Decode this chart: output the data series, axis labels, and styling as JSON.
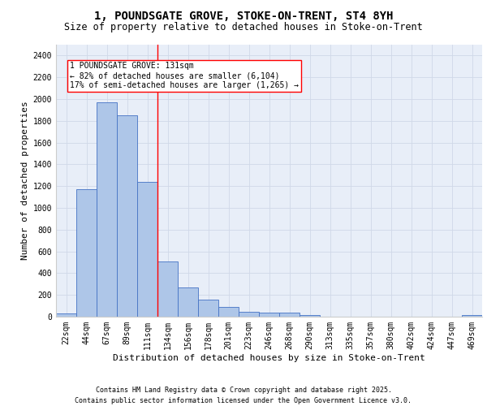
{
  "title_line1": "1, POUNDSGATE GROVE, STOKE-ON-TRENT, ST4 8YH",
  "title_line2": "Size of property relative to detached houses in Stoke-on-Trent",
  "xlabel": "Distribution of detached houses by size in Stoke-on-Trent",
  "ylabel": "Number of detached properties",
  "categories": [
    "22sqm",
    "44sqm",
    "67sqm",
    "89sqm",
    "111sqm",
    "134sqm",
    "156sqm",
    "178sqm",
    "201sqm",
    "223sqm",
    "246sqm",
    "268sqm",
    "290sqm",
    "313sqm",
    "335sqm",
    "357sqm",
    "380sqm",
    "402sqm",
    "424sqm",
    "447sqm",
    "469sqm"
  ],
  "values": [
    30,
    1170,
    1970,
    1850,
    1240,
    510,
    270,
    155,
    90,
    48,
    38,
    38,
    18,
    0,
    0,
    0,
    0,
    0,
    0,
    0,
    18
  ],
  "bar_color": "#aec6e8",
  "bar_edge_color": "#4472c4",
  "vline_x": 4.5,
  "vline_color": "red",
  "annotation_text": "1 POUNDSGATE GROVE: 131sqm\n← 82% of detached houses are smaller (6,104)\n17% of semi-detached houses are larger (1,265) →",
  "annotation_box_color": "white",
  "annotation_box_edge_color": "red",
  "ylim": [
    0,
    2500
  ],
  "yticks": [
    0,
    200,
    400,
    600,
    800,
    1000,
    1200,
    1400,
    1600,
    1800,
    2000,
    2200,
    2400
  ],
  "grid_color": "#d0d8e8",
  "background_color": "#e8eef8",
  "footer_line1": "Contains HM Land Registry data © Crown copyright and database right 2025.",
  "footer_line2": "Contains public sector information licensed under the Open Government Licence v3.0.",
  "title_fontsize": 10,
  "subtitle_fontsize": 8.5,
  "axis_label_fontsize": 8,
  "tick_fontsize": 7,
  "annotation_fontsize": 7,
  "footer_fontsize": 6
}
